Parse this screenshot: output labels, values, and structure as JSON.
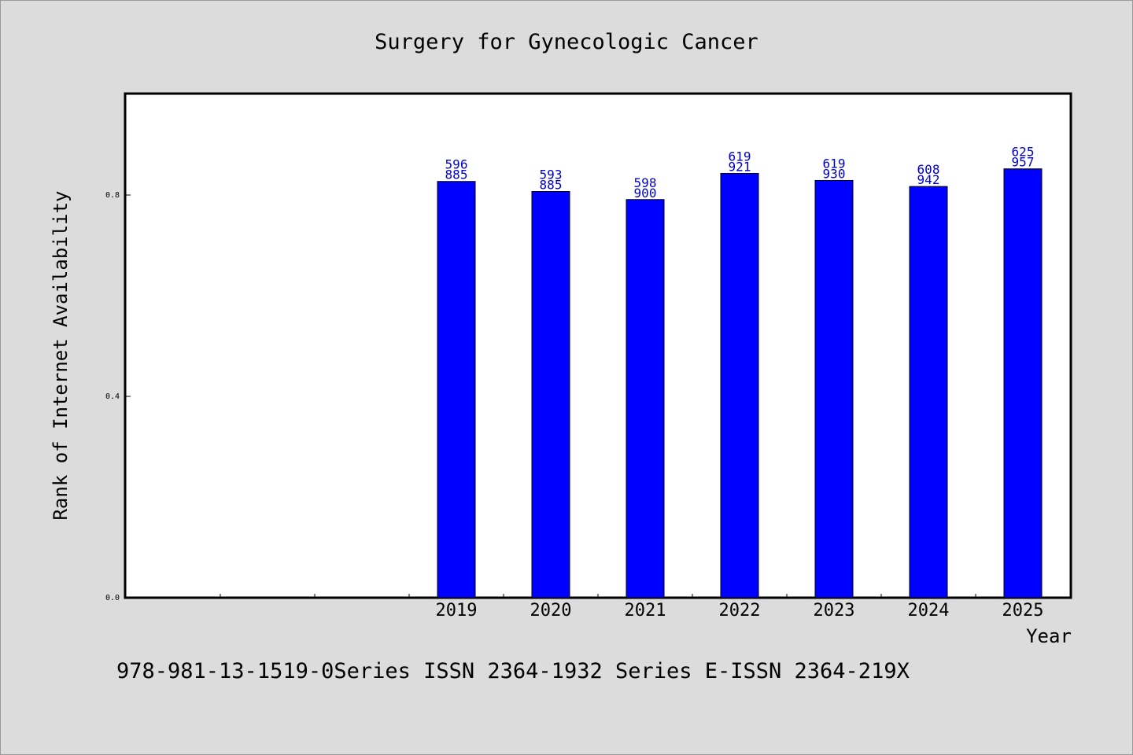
{
  "chart_data": {
    "type": "bar",
    "title": "Surgery for Gynecologic Cancer",
    "xlabel": "Year",
    "ylabel": "Rank of Internet Availability",
    "categories": [
      "",
      "",
      "",
      "2019",
      "2020",
      "2021",
      "2022",
      "2023",
      "2024",
      "2025"
    ],
    "values": [
      null,
      null,
      null,
      0.827,
      0.807,
      0.791,
      0.843,
      0.829,
      0.817,
      0.852
    ],
    "data_labels": [
      [
        "",
        ""
      ],
      [
        "",
        ""
      ],
      [
        "",
        ""
      ],
      [
        "596",
        "885"
      ],
      [
        "593",
        "885"
      ],
      [
        "598",
        "900"
      ],
      [
        "619",
        "921"
      ],
      [
        "619",
        "930"
      ],
      [
        "608",
        "942"
      ],
      [
        "625",
        "957"
      ]
    ],
    "yticks": [
      "0.0",
      "0.4",
      "0.8"
    ],
    "ylim": [
      0,
      1.0
    ],
    "grid": false,
    "bar_color": "#0000ff",
    "label_color": "#0000cc"
  },
  "footer": "978-981-13-1519-0Series ISSN 2364-1932 Series E-ISSN 2364-219X"
}
